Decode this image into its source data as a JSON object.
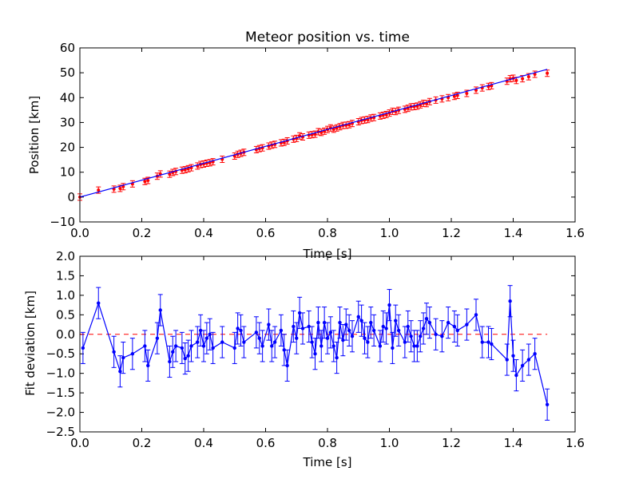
{
  "chart_data": [
    {
      "type": "scatter",
      "title": "Meteor position vs. time",
      "xlabel": "Time [s]",
      "ylabel": "Position [km]",
      "xlim": [
        0.0,
        1.6
      ],
      "ylim": [
        -10,
        60
      ],
      "xticks": [
        "0.0",
        "0.2",
        "0.4",
        "0.6",
        "0.8",
        "1.0",
        "1.2",
        "1.4",
        "1.6"
      ],
      "yticks": [
        "−10",
        "0",
        "10",
        "20",
        "30",
        "40",
        "50",
        "60"
      ],
      "grid": false,
      "legend": "none",
      "fit_line": {
        "x": [
          0.0,
          1.51
        ],
        "y": [
          0.0,
          51.4
        ]
      },
      "series": [
        {
          "x": [
            0.0,
            0.06,
            0.11,
            0.13,
            0.14,
            0.17,
            0.21,
            0.22,
            0.25,
            0.26,
            0.29,
            0.3,
            0.31,
            0.33,
            0.34,
            0.35,
            0.36,
            0.38,
            0.39,
            0.4,
            0.41,
            0.42,
            0.43,
            0.46,
            0.5,
            0.51,
            0.52,
            0.53,
            0.57,
            0.58,
            0.59,
            0.61,
            0.62,
            0.63,
            0.65,
            0.66,
            0.67,
            0.69,
            0.7,
            0.71,
            0.72,
            0.74,
            0.75,
            0.76,
            0.77,
            0.78,
            0.79,
            0.8,
            0.81,
            0.82,
            0.83,
            0.84,
            0.85,
            0.86,
            0.87,
            0.88,
            0.9,
            0.91,
            0.92,
            0.93,
            0.94,
            0.95,
            0.97,
            0.98,
            0.99,
            1.0,
            1.01,
            1.02,
            1.03,
            1.05,
            1.06,
            1.07,
            1.08,
            1.09,
            1.1,
            1.11,
            1.12,
            1.13,
            1.15,
            1.17,
            1.19,
            1.21,
            1.22,
            1.25,
            1.28,
            1.3,
            1.32,
            1.33,
            1.38,
            1.39,
            1.4,
            1.41,
            1.43,
            1.45,
            1.47,
            1.51
          ],
          "y": [
            0.0,
            2.8,
            3.2,
            3.5,
            4.2,
            5.3,
            6.3,
            6.7,
            8.4,
            9.3,
            9.2,
            9.9,
            10.3,
            10.8,
            11.0,
            11.4,
            11.8,
            12.5,
            13.1,
            13.3,
            13.6,
            13.8,
            14.2,
            15.2,
            16.5,
            17.2,
            17.6,
            18.0,
            19.1,
            19.5,
            19.8,
            20.5,
            20.9,
            21.2,
            21.8,
            22.0,
            22.6,
            23.3,
            23.6,
            24.6,
            24.2,
            24.9,
            25.1,
            25.3,
            26.3,
            26.0,
            26.5,
            27.2,
            27.8,
            27.3,
            27.8,
            28.3,
            28.8,
            28.9,
            29.1,
            29.6,
            30.3,
            30.8,
            31.0,
            31.2,
            31.8,
            32.0,
            32.6,
            32.9,
            33.2,
            33.8,
            34.5,
            34.4,
            34.9,
            35.3,
            35.7,
            36.3,
            36.4,
            36.6,
            37.1,
            37.7,
            37.6,
            38.4,
            39.0,
            39.5,
            40.0,
            40.5,
            40.9,
            41.7,
            43.0,
            43.9,
            44.5,
            44.8,
            46.6,
            47.6,
            47.8,
            46.9,
            47.6,
            48.4,
            49.4,
            49.8
          ]
        }
      ]
    },
    {
      "type": "line",
      "title": "",
      "xlabel": "Time [s]",
      "ylabel": "Fit deviation [km]",
      "xlim": [
        0.0,
        1.6
      ],
      "ylim": [
        -2.5,
        2.0
      ],
      "xticks": [
        "0.0",
        "0.2",
        "0.4",
        "0.6",
        "0.8",
        "1.0",
        "1.2",
        "1.4",
        "1.6"
      ],
      "yticks": [
        "−2.5",
        "−2.0",
        "−1.5",
        "−1.0",
        "−0.5",
        "0.0",
        "0.5",
        "1.0",
        "1.5",
        "2.0"
      ],
      "grid": false,
      "legend": "none",
      "zero_line": 0.0,
      "error": 0.4,
      "series": [
        {
          "x": [
            0.01,
            0.06,
            0.11,
            0.13,
            0.14,
            0.17,
            0.21,
            0.22,
            0.25,
            0.26,
            0.29,
            0.3,
            0.31,
            0.33,
            0.34,
            0.35,
            0.36,
            0.38,
            0.39,
            0.4,
            0.41,
            0.42,
            0.43,
            0.46,
            0.5,
            0.51,
            0.52,
            0.53,
            0.57,
            0.58,
            0.59,
            0.61,
            0.62,
            0.63,
            0.65,
            0.66,
            0.67,
            0.69,
            0.7,
            0.71,
            0.72,
            0.74,
            0.75,
            0.76,
            0.77,
            0.78,
            0.79,
            0.8,
            0.81,
            0.82,
            0.83,
            0.84,
            0.85,
            0.86,
            0.87,
            0.88,
            0.9,
            0.91,
            0.92,
            0.93,
            0.94,
            0.95,
            0.97,
            0.98,
            0.99,
            1.0,
            1.01,
            1.02,
            1.03,
            1.05,
            1.06,
            1.07,
            1.08,
            1.09,
            1.1,
            1.11,
            1.12,
            1.13,
            1.15,
            1.17,
            1.19,
            1.21,
            1.22,
            1.25,
            1.28,
            1.3,
            1.32,
            1.33,
            1.38,
            1.39,
            1.4,
            1.41,
            1.43,
            1.45,
            1.47,
            1.51
          ],
          "y": [
            -0.35,
            0.8,
            -0.45,
            -0.95,
            -0.6,
            -0.5,
            -0.3,
            -0.8,
            -0.1,
            0.62,
            -0.7,
            -0.45,
            -0.3,
            -0.35,
            -0.62,
            -0.55,
            -0.3,
            -0.2,
            0.1,
            -0.3,
            -0.1,
            0.0,
            -0.35,
            -0.2,
            -0.35,
            0.15,
            0.1,
            -0.2,
            0.05,
            -0.1,
            -0.3,
            0.25,
            -0.3,
            -0.2,
            0.1,
            -0.4,
            -0.8,
            0.2,
            -0.1,
            0.55,
            0.15,
            0.2,
            -0.2,
            -0.5,
            0.3,
            -0.3,
            0.3,
            -0.1,
            0.05,
            -0.3,
            -0.6,
            0.3,
            -0.15,
            0.25,
            0.1,
            -0.05,
            0.45,
            0.35,
            -0.1,
            -0.2,
            0.3,
            0.1,
            -0.3,
            0.2,
            0.15,
            0.75,
            -0.35,
            0.35,
            0.1,
            -0.2,
            0.2,
            -0.05,
            -0.3,
            -0.3,
            -0.05,
            0.15,
            0.4,
            0.3,
            0.0,
            -0.05,
            0.3,
            0.2,
            0.1,
            0.25,
            0.5,
            -0.2,
            -0.2,
            -0.25,
            -0.65,
            0.85,
            -0.55,
            -1.05,
            -0.8,
            -0.65,
            -0.5,
            -1.8
          ]
        }
      ]
    }
  ]
}
